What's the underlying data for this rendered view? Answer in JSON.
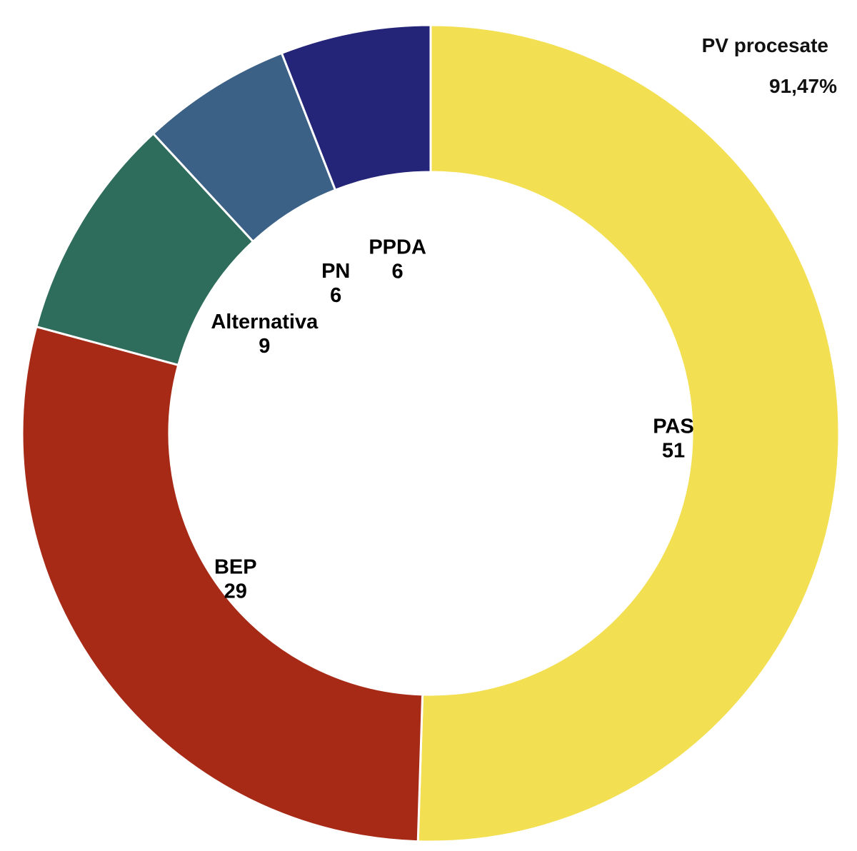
{
  "header": {
    "caption": "PV procesate",
    "progress": "91,47%"
  },
  "chart_data": {
    "type": "pie",
    "variant": "donut",
    "start": "12 o'clock",
    "direction": "clockwise",
    "categories": [
      "PAS",
      "BEP",
      "Alternativa",
      "PN",
      "PPDA"
    ],
    "values": [
      51,
      29,
      9,
      6,
      6
    ],
    "labels": [
      "51",
      "29",
      "9",
      "6",
      "6"
    ],
    "colors": [
      "#F3DF52",
      "#A72A17",
      "#2E6C5B",
      "#3C6186",
      "#242578"
    ]
  }
}
